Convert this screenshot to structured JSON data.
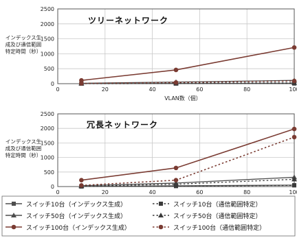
{
  "chart_data": [
    {
      "type": "line",
      "title": "ツリーネットワーク",
      "ylabel": [
        "インデックス生",
        "成及び通信範囲",
        "特定時間（秒）"
      ],
      "xlabel": "VLAN数（個）",
      "x": [
        10,
        50,
        100
      ],
      "xlim": [
        0,
        100
      ],
      "ylim": [
        0,
        2500
      ],
      "xticks": [
        "0",
        "20",
        "40",
        "60",
        "80",
        "100"
      ],
      "yticks": [
        "0",
        "500",
        "1000",
        "1500",
        "2000",
        "2500"
      ],
      "grid": true,
      "series": [
        {
          "name": "スイッチ10台（インデックス生成）",
          "values": [
            2,
            8,
            15
          ]
        },
        {
          "name": "スイッチ50台（インデックス生成）",
          "values": [
            15,
            55,
            110
          ]
        },
        {
          "name": "スイッチ100台（インデックス生成）",
          "values": [
            110,
            460,
            1210
          ]
        },
        {
          "name": "スイッチ10台（通信範囲特定）",
          "values": [
            1,
            3,
            6
          ]
        },
        {
          "name": "スイッチ50台（通信範囲特定）",
          "values": [
            5,
            15,
            30
          ]
        },
        {
          "name": "スイッチ100台（通信範囲特定）",
          "values": [
            10,
            40,
            90
          ]
        }
      ]
    },
    {
      "type": "line",
      "title": "冗長ネットワーク",
      "ylabel": [
        "インデックス生",
        "成及び通信範囲",
        "特定時間（秒）"
      ],
      "xlabel": "VLAN数（個）",
      "x": [
        10,
        50,
        100
      ],
      "xlim": [
        0,
        100
      ],
      "ylim": [
        0,
        2500
      ],
      "xticks": [
        "0",
        "20",
        "40",
        "60",
        "80",
        "100"
      ],
      "yticks": [
        "0",
        "500",
        "1000",
        "1500",
        "2000",
        "2500"
      ],
      "grid": true,
      "series": [
        {
          "name": "スイッチ10台（インデックス生成）",
          "values": [
            5,
            25,
            50
          ]
        },
        {
          "name": "スイッチ50台（インデックス生成）",
          "values": [
            30,
            120,
            320
          ]
        },
        {
          "name": "スイッチ100台（インデックス生成）",
          "values": [
            220,
            640,
            1980
          ]
        },
        {
          "name": "スイッチ10台（通信範囲特定）",
          "values": [
            3,
            15,
            40
          ]
        },
        {
          "name": "スイッチ50台（通信範囲特定）",
          "values": [
            15,
            80,
            250
          ]
        },
        {
          "name": "スイッチ100台（通信範囲特定）",
          "values": [
            40,
            220,
            1700
          ]
        }
      ]
    }
  ],
  "legend": [
    {
      "label": "スイッチ10台（インデックス生成）",
      "marker": "square",
      "dashed": false
    },
    {
      "label": "スイッチ10台（通信範囲特定）",
      "marker": "square",
      "dashed": true
    },
    {
      "label": "スイッチ50台（インデックス生成）",
      "marker": "triangle",
      "dashed": false
    },
    {
      "label": "スイッチ50台（通信範囲特定）",
      "marker": "triangle",
      "dashed": true
    },
    {
      "label": "スイッチ100台（インデックス生成）",
      "marker": "circle",
      "dashed": false
    },
    {
      "label": "スイッチ100台（通信範囲特定）",
      "marker": "circle",
      "dashed": true
    }
  ],
  "colors": {
    "gridline": "#c8c8c8",
    "frame": "#555555",
    "solid_series": "#4d4d4d",
    "dashed_series": "#3a3a3a",
    "circle_series": "#7a3b32",
    "text": "#1a1a1a"
  }
}
